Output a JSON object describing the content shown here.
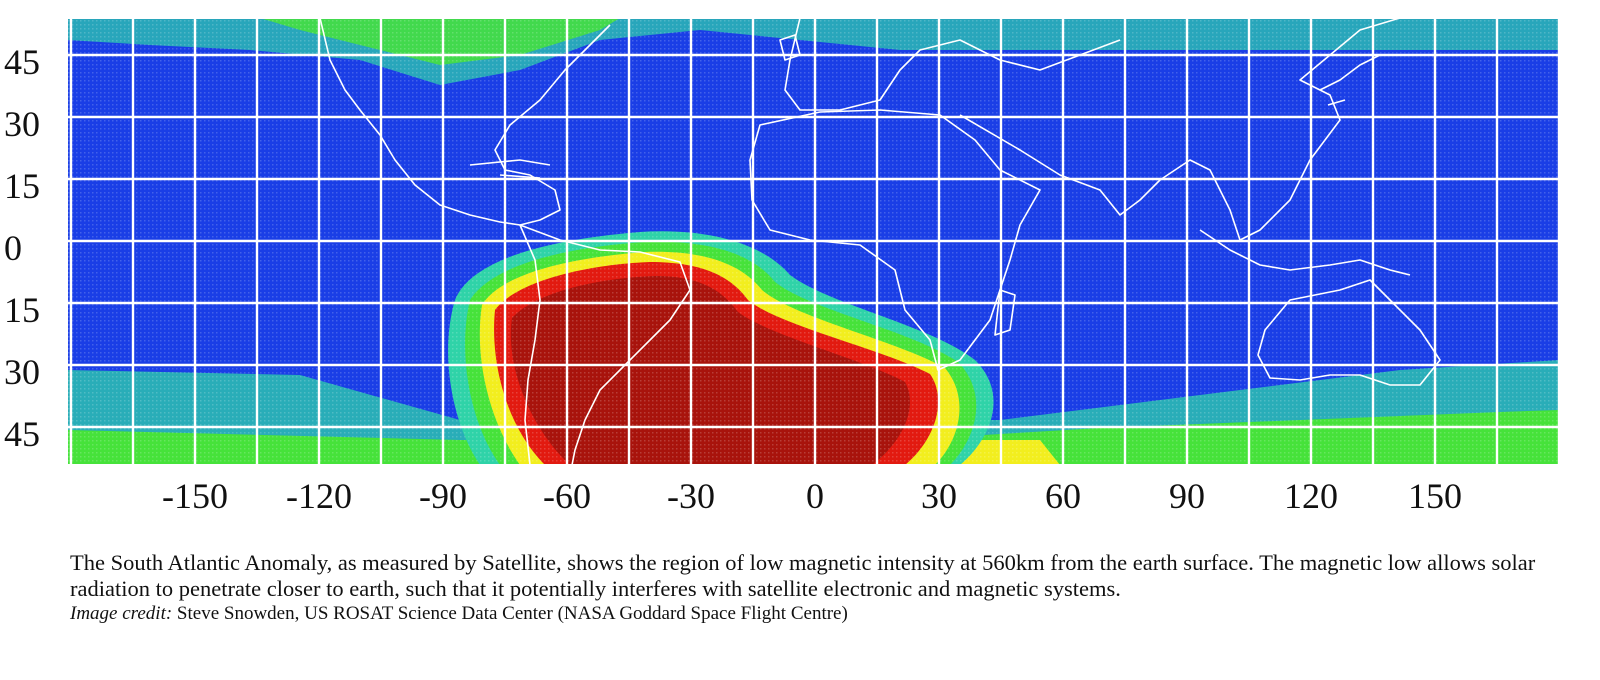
{
  "map": {
    "y_axis_labels": [
      "45",
      "30",
      "15",
      "0",
      "15",
      "30",
      "45"
    ],
    "x_axis_labels": [
      "-150",
      "-120",
      "-90",
      "-60",
      "-30",
      "0",
      "30",
      "60",
      "90",
      "120",
      "150"
    ],
    "colors": {
      "background": "#1a3ee6",
      "low_ring": "#2fd3a8",
      "green": "#46e23a",
      "yellow": "#f2ee1e",
      "red": "#e21a10",
      "core": "#a8130c",
      "grid": "#ffffff",
      "coastline": "#ffffff"
    }
  },
  "caption": {
    "text": "The South Atlantic Anomaly, as measured by Satellite, shows the region of low magnetic intensity at 560km from the earth surface. The magnetic low allows solar radiation to penetrate closer to earth, such that it potentially interferes with satellite electronic and magnetic systems.",
    "credit_label": "Image credit:",
    "credit_text": "Steve Snowden, US ROSAT Science Data Center (NASA Goddard Space Flight Centre)"
  }
}
